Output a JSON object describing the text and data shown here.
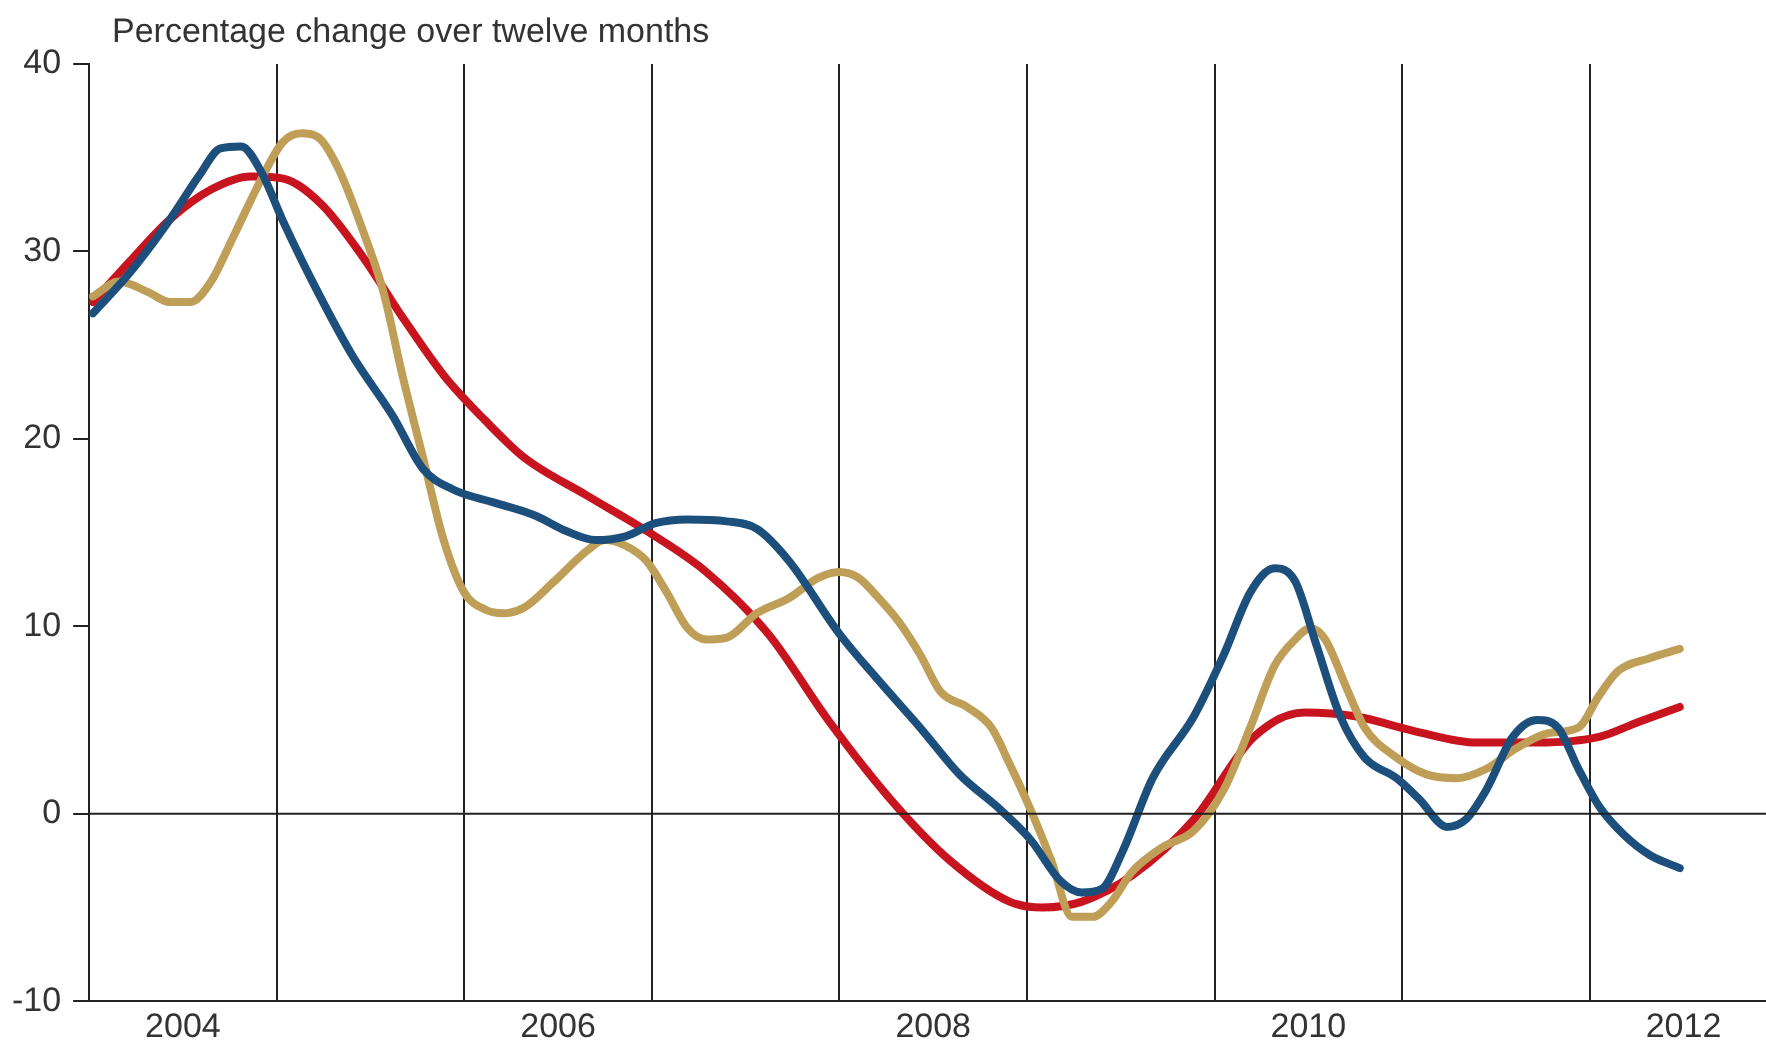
{
  "chart_data": {
    "type": "line",
    "ylabel": "Percentage change over twelve months",
    "xlim": [
      2004,
      2012.94
    ],
    "ylim": [
      -10,
      40
    ],
    "yticks": [
      -10,
      0,
      10,
      20,
      30,
      40
    ],
    "xticks": [
      {
        "value": 2004.5,
        "label": "2004"
      },
      {
        "value": 2005,
        "label": null
      },
      {
        "value": 2006,
        "label": null
      },
      {
        "value": 2006.5,
        "label": "2006"
      },
      {
        "value": 2007,
        "label": null
      },
      {
        "value": 2008,
        "label": null
      },
      {
        "value": 2008.5,
        "label": "2008"
      },
      {
        "value": 2009,
        "label": null
      },
      {
        "value": 2010,
        "label": null
      },
      {
        "value": 2010.5,
        "label": "2010"
      },
      {
        "value": 2011,
        "label": null
      },
      {
        "value": 2012,
        "label": null
      },
      {
        "value": 2012.5,
        "label": "2012"
      }
    ],
    "grid": "x",
    "legend": false,
    "marker": "none",
    "line_style": "solid",
    "ref_lines": [
      {
        "axis": "y",
        "value": 0,
        "label": null
      }
    ],
    "series": [
      {
        "color": "#1d4f7c",
        "x": [
          2004.02,
          2004.22,
          2004.43,
          2004.59,
          2004.7,
          2004.81,
          2004.92,
          2005.03,
          2005.19,
          2005.4,
          2005.62,
          2005.78,
          2005.94,
          2006.16,
          2006.38,
          2006.54,
          2006.7,
          2006.86,
          2007.02,
          2007.19,
          2007.4,
          2007.56,
          2007.73,
          2008.0,
          2008.21,
          2008.43,
          2008.64,
          2008.86,
          2009.02,
          2009.18,
          2009.29,
          2009.4,
          2009.51,
          2009.67,
          2009.89,
          2010.05,
          2010.19,
          2010.32,
          2010.43,
          2010.54,
          2010.67,
          2010.8,
          2010.97,
          2011.09,
          2011.24,
          2011.34,
          2011.45,
          2011.59,
          2011.72,
          2011.83,
          2011.94,
          2012.05,
          2012.18,
          2012.32,
          2012.48
        ],
        "values": [
          26.7,
          28.9,
          31.7,
          34.1,
          35.5,
          35.6,
          34.2,
          31.7,
          28.4,
          24.5,
          21.2,
          18.4,
          17.3,
          16.6,
          15.9,
          15.1,
          14.6,
          14.8,
          15.5,
          15.7,
          15.6,
          15.2,
          13.5,
          9.6,
          7.1,
          4.6,
          2.1,
          0.2,
          -1.4,
          -3.6,
          -4.2,
          -4.0,
          -2.0,
          1.9,
          5.2,
          8.5,
          11.8,
          13.1,
          12.4,
          9.1,
          5.2,
          3.0,
          1.9,
          0.8,
          -0.7,
          -0.3,
          1.3,
          4.1,
          5.0,
          4.6,
          2.4,
          0.4,
          -1.1,
          -2.2,
          -2.9
        ]
      },
      {
        "color": "#bf9f58",
        "x": [
          2004.02,
          2004.16,
          2004.32,
          2004.43,
          2004.54,
          2004.65,
          2004.76,
          2004.92,
          2005.03,
          2005.13,
          2005.22,
          2005.33,
          2005.46,
          2005.57,
          2005.67,
          2005.78,
          2005.89,
          2006.0,
          2006.11,
          2006.21,
          2006.32,
          2006.48,
          2006.65,
          2006.75,
          2006.86,
          2006.97,
          2007.08,
          2007.19,
          2007.29,
          2007.4,
          2007.56,
          2007.73,
          2007.89,
          2008.0,
          2008.1,
          2008.21,
          2008.32,
          2008.43,
          2008.54,
          2008.68,
          2008.81,
          2008.91,
          2009.02,
          2009.13,
          2009.24,
          2009.35,
          2009.45,
          2009.56,
          2009.72,
          2009.89,
          2010.05,
          2010.19,
          2010.32,
          2010.43,
          2010.51,
          2010.59,
          2010.7,
          2010.8,
          2010.97,
          2011.13,
          2011.29,
          2011.45,
          2011.61,
          2011.78,
          2011.94,
          2012.05,
          2012.15,
          2012.32,
          2012.48
        ],
        "values": [
          27.6,
          28.4,
          27.8,
          27.3,
          27.3,
          28.4,
          30.6,
          33.9,
          35.8,
          36.3,
          36.1,
          34.4,
          31.1,
          27.8,
          23.4,
          19.0,
          14.6,
          11.8,
          10.9,
          10.7,
          11.0,
          12.4,
          14.0,
          14.6,
          14.3,
          13.5,
          11.8,
          9.9,
          9.3,
          9.4,
          10.7,
          11.5,
          12.6,
          12.9,
          12.6,
          11.5,
          10.2,
          8.5,
          6.5,
          5.7,
          4.6,
          2.6,
          0.2,
          -2.5,
          -5.5,
          -5.5,
          -4.7,
          -3.1,
          -1.8,
          -0.9,
          1.3,
          4.6,
          7.9,
          9.3,
          9.9,
          9.3,
          6.8,
          4.6,
          3.0,
          2.1,
          1.9,
          2.4,
          3.5,
          4.3,
          4.6,
          6.3,
          7.6,
          8.3,
          8.8
        ]
      },
      {
        "color": "#c8141e",
        "x": [
          2004.02,
          2004.22,
          2004.43,
          2004.65,
          2004.86,
          2005.03,
          2005.24,
          2005.46,
          2005.67,
          2005.89,
          2006.11,
          2006.32,
          2006.65,
          2006.97,
          2007.29,
          2007.62,
          2007.94,
          2008.27,
          2008.59,
          2008.91,
          2009.08,
          2009.29,
          2009.56,
          2009.89,
          2010.21,
          2010.48,
          2010.75,
          2011.07,
          2011.4,
          2011.72,
          2012.05,
          2012.26,
          2012.48
        ],
        "values": [
          27.3,
          29.5,
          31.7,
          33.3,
          34.0,
          33.9,
          32.5,
          29.7,
          26.5,
          23.4,
          21.0,
          19.0,
          17.0,
          15.1,
          12.9,
          9.6,
          5.0,
          0.8,
          -2.5,
          -4.7,
          -5.0,
          -4.7,
          -3.3,
          -0.3,
          4.1,
          5.4,
          5.2,
          4.4,
          3.8,
          3.8,
          4.1,
          4.9,
          5.7
        ]
      }
    ]
  }
}
